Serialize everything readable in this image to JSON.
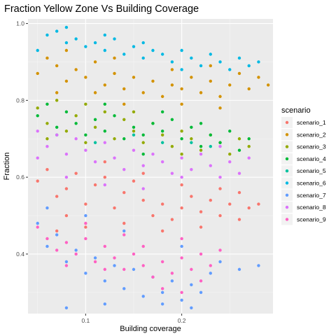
{
  "chart_data": {
    "type": "scatter",
    "title": "Fraction Yellow Zone Vs Building Coverage",
    "xlabel": "Building coverage",
    "ylabel": "Fraction",
    "xlim": [
      0.04,
      0.295
    ],
    "ylim": [
      0.245,
      1.012
    ],
    "x_ticks": [
      0.1,
      0.2
    ],
    "x_tick_labels": [
      "0.1",
      "0.2"
    ],
    "y_ticks": [
      0.4,
      0.6,
      0.8,
      1.0
    ],
    "y_tick_labels": [
      "0.4",
      "0.6",
      "0.8",
      "1.0"
    ],
    "grid": true,
    "legend": {
      "title": "scenario",
      "placement": "right"
    },
    "series": [
      {
        "name": "scenario_1",
        "color": "#F8766D",
        "points": [
          [
            0.05,
            0.59
          ],
          [
            0.06,
            0.62
          ],
          [
            0.07,
            0.55
          ],
          [
            0.08,
            0.57
          ],
          [
            0.09,
            0.61
          ],
          [
            0.1,
            0.53
          ],
          [
            0.11,
            0.58
          ],
          [
            0.12,
            0.6
          ],
          [
            0.13,
            0.52
          ],
          [
            0.14,
            0.56
          ],
          [
            0.15,
            0.59
          ],
          [
            0.16,
            0.54
          ],
          [
            0.17,
            0.5
          ],
          [
            0.18,
            0.53
          ],
          [
            0.19,
            0.49
          ],
          [
            0.2,
            0.52
          ],
          [
            0.21,
            0.55
          ],
          [
            0.22,
            0.51
          ],
          [
            0.23,
            0.54
          ],
          [
            0.24,
            0.5
          ],
          [
            0.25,
            0.53
          ],
          [
            0.26,
            0.56
          ],
          [
            0.27,
            0.52
          ],
          [
            0.08,
            0.5
          ],
          [
            0.12,
            0.64
          ],
          [
            0.16,
            0.61
          ],
          [
            0.2,
            0.58
          ],
          [
            0.24,
            0.57
          ],
          [
            0.28,
            0.53
          ],
          [
            0.07,
            0.46
          ],
          [
            0.1,
            0.47
          ],
          [
            0.14,
            0.48
          ],
          [
            0.18,
            0.46
          ],
          [
            0.22,
            0.47
          ],
          [
            0.26,
            0.49
          ]
        ]
      },
      {
        "name": "scenario_2",
        "color": "#D39200",
        "points": [
          [
            0.05,
            0.87
          ],
          [
            0.06,
            0.91
          ],
          [
            0.07,
            0.89
          ],
          [
            0.08,
            0.93
          ],
          [
            0.09,
            0.88
          ],
          [
            0.1,
            0.86
          ],
          [
            0.11,
            0.9
          ],
          [
            0.12,
            0.84
          ],
          [
            0.13,
            0.87
          ],
          [
            0.14,
            0.83
          ],
          [
            0.15,
            0.86
          ],
          [
            0.16,
            0.82
          ],
          [
            0.17,
            0.85
          ],
          [
            0.18,
            0.81
          ],
          [
            0.19,
            0.84
          ],
          [
            0.2,
            0.83
          ],
          [
            0.21,
            0.86
          ],
          [
            0.22,
            0.82
          ],
          [
            0.23,
            0.85
          ],
          [
            0.24,
            0.81
          ],
          [
            0.25,
            0.84
          ],
          [
            0.26,
            0.87
          ],
          [
            0.27,
            0.83
          ],
          [
            0.28,
            0.86
          ],
          [
            0.29,
            0.84
          ],
          [
            0.08,
            0.85
          ],
          [
            0.11,
            0.82
          ],
          [
            0.14,
            0.79
          ],
          [
            0.2,
            0.79
          ],
          [
            0.24,
            0.78
          ],
          [
            0.07,
            0.82
          ],
          [
            0.13,
            0.91
          ],
          [
            0.19,
            0.88
          ],
          [
            0.23,
            0.89
          ]
        ]
      },
      {
        "name": "scenario_3",
        "color": "#93AA00",
        "points": [
          [
            0.05,
            0.78
          ],
          [
            0.06,
            0.74
          ],
          [
            0.07,
            0.8
          ],
          [
            0.08,
            0.72
          ],
          [
            0.09,
            0.76
          ],
          [
            0.1,
            0.79
          ],
          [
            0.11,
            0.73
          ],
          [
            0.12,
            0.77
          ],
          [
            0.13,
            0.7
          ],
          [
            0.14,
            0.75
          ],
          [
            0.15,
            0.72
          ],
          [
            0.16,
            0.69
          ],
          [
            0.17,
            0.74
          ],
          [
            0.18,
            0.71
          ],
          [
            0.19,
            0.68
          ],
          [
            0.2,
            0.72
          ],
          [
            0.21,
            0.7
          ],
          [
            0.22,
            0.67
          ],
          [
            0.23,
            0.71
          ],
          [
            0.24,
            0.69
          ],
          [
            0.25,
            0.66
          ],
          [
            0.26,
            0.7
          ],
          [
            0.27,
            0.68
          ],
          [
            0.06,
            0.7
          ],
          [
            0.1,
            0.69
          ],
          [
            0.15,
            0.77
          ],
          [
            0.2,
            0.66
          ]
        ]
      },
      {
        "name": "scenario_4",
        "color": "#00BA38",
        "points": [
          [
            0.05,
            0.76
          ],
          [
            0.06,
            0.79
          ],
          [
            0.07,
            0.73
          ],
          [
            0.08,
            0.77
          ],
          [
            0.09,
            0.74
          ],
          [
            0.1,
            0.71
          ],
          [
            0.11,
            0.75
          ],
          [
            0.12,
            0.72
          ],
          [
            0.13,
            0.76
          ],
          [
            0.14,
            0.7
          ],
          [
            0.15,
            0.73
          ],
          [
            0.16,
            0.71
          ],
          [
            0.17,
            0.74
          ],
          [
            0.18,
            0.72
          ],
          [
            0.19,
            0.75
          ],
          [
            0.2,
            0.7
          ],
          [
            0.21,
            0.73
          ],
          [
            0.22,
            0.68
          ],
          [
            0.23,
            0.71
          ],
          [
            0.24,
            0.69
          ],
          [
            0.25,
            0.72
          ],
          [
            0.26,
            0.67
          ],
          [
            0.27,
            0.7
          ],
          [
            0.12,
            0.79
          ],
          [
            0.18,
            0.77
          ],
          [
            0.22,
            0.74
          ],
          [
            0.16,
            0.66
          ]
        ]
      },
      {
        "name": "scenario_5",
        "color": "#00C19F",
        "points": [
          [
            0.07,
            0.71
          ],
          [
            0.11,
            0.69
          ],
          [
            0.15,
            0.71
          ],
          [
            0.18,
            0.69
          ],
          [
            0.21,
            0.69
          ],
          [
            0.23,
            0.68
          ]
        ]
      },
      {
        "name": "scenario_6",
        "color": "#00B9E3",
        "points": [
          [
            0.05,
            0.93
          ],
          [
            0.06,
            0.97
          ],
          [
            0.07,
            0.98
          ],
          [
            0.08,
            0.99
          ],
          [
            0.09,
            0.96
          ],
          [
            0.1,
            0.94
          ],
          [
            0.11,
            0.95
          ],
          [
            0.12,
            0.93
          ],
          [
            0.13,
            0.96
          ],
          [
            0.14,
            0.92
          ],
          [
            0.15,
            0.94
          ],
          [
            0.16,
            0.91
          ],
          [
            0.17,
            0.93
          ],
          [
            0.18,
            0.92
          ],
          [
            0.19,
            0.9
          ],
          [
            0.2,
            0.93
          ],
          [
            0.21,
            0.91
          ],
          [
            0.22,
            0.89
          ],
          [
            0.23,
            0.92
          ],
          [
            0.24,
            0.9
          ],
          [
            0.25,
            0.88
          ],
          [
            0.26,
            0.91
          ],
          [
            0.27,
            0.89
          ],
          [
            0.28,
            0.9
          ],
          [
            0.08,
            0.95
          ],
          [
            0.12,
            0.97
          ],
          [
            0.16,
            0.95
          ],
          [
            0.2,
            0.88
          ]
        ]
      },
      {
        "name": "scenario_7",
        "color": "#619CFF",
        "points": [
          [
            0.05,
            0.48
          ],
          [
            0.06,
            0.42
          ],
          [
            0.07,
            0.45
          ],
          [
            0.08,
            0.38
          ],
          [
            0.09,
            0.41
          ],
          [
            0.1,
            0.35
          ],
          [
            0.11,
            0.39
          ],
          [
            0.12,
            0.33
          ],
          [
            0.13,
            0.37
          ],
          [
            0.14,
            0.31
          ],
          [
            0.15,
            0.36
          ],
          [
            0.16,
            0.29
          ],
          [
            0.17,
            0.34
          ],
          [
            0.18,
            0.3
          ],
          [
            0.19,
            0.33
          ],
          [
            0.2,
            0.28
          ],
          [
            0.21,
            0.32
          ],
          [
            0.22,
            0.3
          ],
          [
            0.23,
            0.35
          ],
          [
            0.08,
            0.26
          ],
          [
            0.12,
            0.27
          ],
          [
            0.18,
            0.27
          ],
          [
            0.21,
            0.26
          ],
          [
            0.06,
            0.52
          ],
          [
            0.1,
            0.5
          ],
          [
            0.14,
            0.46
          ],
          [
            0.2,
            0.42
          ],
          [
            0.24,
            0.38
          ],
          [
            0.26,
            0.36
          ],
          [
            0.28,
            0.37
          ]
        ]
      },
      {
        "name": "scenario_8",
        "color": "#DB72FB",
        "points": [
          [
            0.05,
            0.72
          ],
          [
            0.06,
            0.68
          ],
          [
            0.07,
            0.71
          ],
          [
            0.08,
            0.66
          ],
          [
            0.09,
            0.7
          ],
          [
            0.1,
            0.67
          ],
          [
            0.11,
            0.64
          ],
          [
            0.12,
            0.69
          ],
          [
            0.13,
            0.65
          ],
          [
            0.14,
            0.62
          ],
          [
            0.15,
            0.67
          ],
          [
            0.16,
            0.63
          ],
          [
            0.17,
            0.66
          ],
          [
            0.18,
            0.64
          ],
          [
            0.19,
            0.61
          ],
          [
            0.2,
            0.65
          ],
          [
            0.21,
            0.62
          ],
          [
            0.22,
            0.66
          ],
          [
            0.23,
            0.63
          ],
          [
            0.24,
            0.6
          ],
          [
            0.25,
            0.64
          ],
          [
            0.26,
            0.61
          ],
          [
            0.27,
            0.65
          ],
          [
            0.08,
            0.6
          ],
          [
            0.12,
            0.58
          ],
          [
            0.16,
            0.57
          ],
          [
            0.2,
            0.6
          ],
          [
            0.24,
            0.68
          ],
          [
            0.05,
            0.65
          ]
        ]
      },
      {
        "name": "scenario_9",
        "color": "#FF61C3",
        "points": [
          [
            0.05,
            0.47
          ],
          [
            0.06,
            0.44
          ],
          [
            0.07,
            0.41
          ],
          [
            0.08,
            0.43
          ],
          [
            0.09,
            0.4
          ],
          [
            0.1,
            0.44
          ],
          [
            0.11,
            0.38
          ],
          [
            0.12,
            0.42
          ],
          [
            0.13,
            0.39
          ],
          [
            0.14,
            0.36
          ],
          [
            0.15,
            0.4
          ],
          [
            0.16,
            0.37
          ],
          [
            0.17,
            0.34
          ],
          [
            0.18,
            0.38
          ],
          [
            0.19,
            0.35
          ],
          [
            0.2,
            0.39
          ],
          [
            0.21,
            0.36
          ],
          [
            0.22,
            0.33
          ],
          [
            0.23,
            0.37
          ],
          [
            0.18,
            0.31
          ],
          [
            0.2,
            0.3
          ],
          [
            0.16,
            0.42
          ],
          [
            0.22,
            0.4
          ],
          [
            0.1,
            0.48
          ],
          [
            0.14,
            0.45
          ],
          [
            0.2,
            0.44
          ],
          [
            0.24,
            0.41
          ],
          [
            0.12,
            0.36
          ],
          [
            0.08,
            0.37
          ]
        ]
      }
    ]
  }
}
